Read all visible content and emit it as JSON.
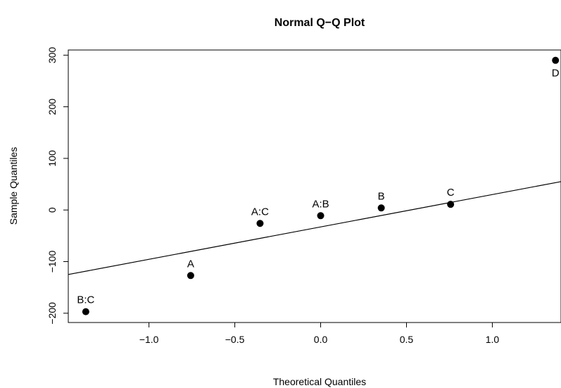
{
  "chart_data": {
    "type": "scatter",
    "title": "Normal Q−Q Plot",
    "xlabel": "Theoretical Quantiles",
    "ylabel": "Sample Quantiles",
    "xlim": [
      -1.47,
      1.4
    ],
    "ylim": [
      -218,
      310
    ],
    "xticks": [
      -1.0,
      -0.5,
      0.0,
      0.5,
      1.0
    ],
    "xtick_labels": [
      "−1.0",
      "−0.5",
      "0.0",
      "0.5",
      "1.0"
    ],
    "yticks": [
      -200,
      -100,
      0,
      100,
      200,
      300
    ],
    "ytick_labels": [
      "−200",
      "−100",
      "0",
      "100",
      "200",
      "300"
    ],
    "grid": false,
    "points": [
      {
        "label": "B:C",
        "x": -1.368,
        "y": -197
      },
      {
        "label": "A",
        "x": -0.757,
        "y": -127
      },
      {
        "label": "A:C",
        "x": -0.353,
        "y": -26
      },
      {
        "label": "A:B",
        "x": 0.0,
        "y": -11
      },
      {
        "label": "B",
        "x": 0.353,
        "y": 4
      },
      {
        "label": "C",
        "x": 0.757,
        "y": 11
      },
      {
        "label": "D",
        "x": 1.368,
        "y": 290
      }
    ],
    "reference_line": {
      "x": [
        -1.47,
        1.4
      ],
      "y": [
        -125,
        55
      ]
    }
  }
}
